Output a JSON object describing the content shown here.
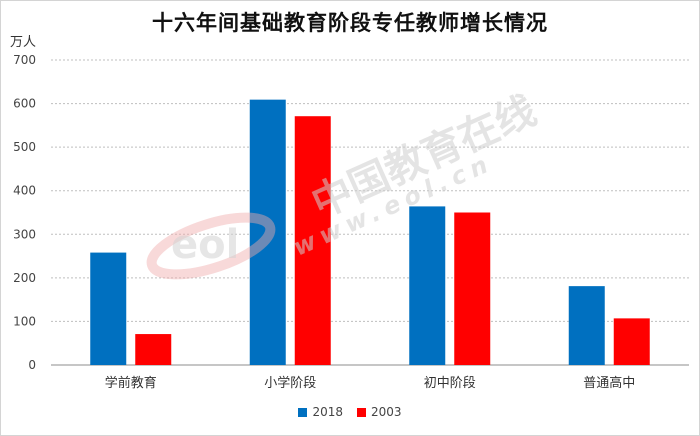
{
  "chart_data": {
    "type": "bar",
    "title": "十六年间基础教育阶段专任教师增长情况",
    "unit": "万人",
    "categories": [
      "学前教育",
      "小学阶段",
      "初中阶段",
      "普通高中"
    ],
    "series": [
      {
        "name": "2018",
        "values": [
          258,
          609,
          364,
          181
        ],
        "color": "#0070c0"
      },
      {
        "name": "2003",
        "values": [
          71,
          571,
          350,
          107
        ],
        "color": "#ff0000"
      }
    ],
    "yticks": [
      0,
      100,
      200,
      300,
      400,
      500,
      600,
      700
    ],
    "ylim": [
      0,
      700
    ],
    "grid": true,
    "legend_position": "bottom"
  },
  "watermark": {
    "text": "中国教育在线",
    "url": "www.eol.cn",
    "logo_text": "eol"
  }
}
